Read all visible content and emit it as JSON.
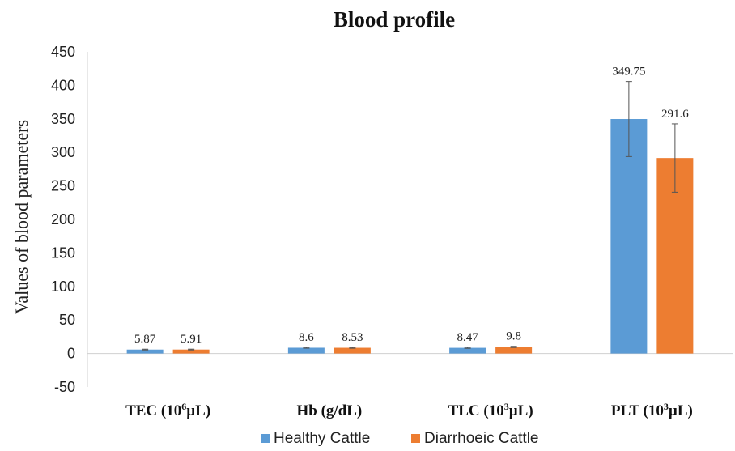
{
  "chart_data": {
    "type": "bar",
    "title": "Blood profile",
    "ylabel": "Values of blood parameters",
    "xlabel": "",
    "ylim": [
      -50,
      450
    ],
    "ytick_step": 50,
    "grid": false,
    "legend_position": "bottom",
    "categories": [
      {
        "base": "TEC (10",
        "sup": "6",
        "tail": "µL)"
      },
      {
        "base": "Hb (g/dL)",
        "sup": "",
        "tail": ""
      },
      {
        "base": "TLC (10",
        "sup": "3",
        "tail": "µL)"
      },
      {
        "base": "PLT (10",
        "sup": "3",
        "tail": "µL)"
      }
    ],
    "series": [
      {
        "name": "Healthy Cattle",
        "color": "#5b9bd5",
        "values": [
          5.87,
          8.6,
          8.47,
          349.75
        ],
        "labels": [
          "5.87",
          "8.6",
          "8.47",
          "349.75"
        ],
        "error": [
          0.6,
          0.7,
          0.8,
          56
        ]
      },
      {
        "name": "Diarrhoeic Cattle",
        "color": "#ed7d31",
        "values": [
          5.91,
          8.53,
          9.8,
          291.6
        ],
        "labels": [
          "5.91",
          "8.53",
          "9.8",
          "291.6"
        ],
        "error": [
          0.6,
          0.7,
          0.9,
          51
        ]
      }
    ]
  }
}
